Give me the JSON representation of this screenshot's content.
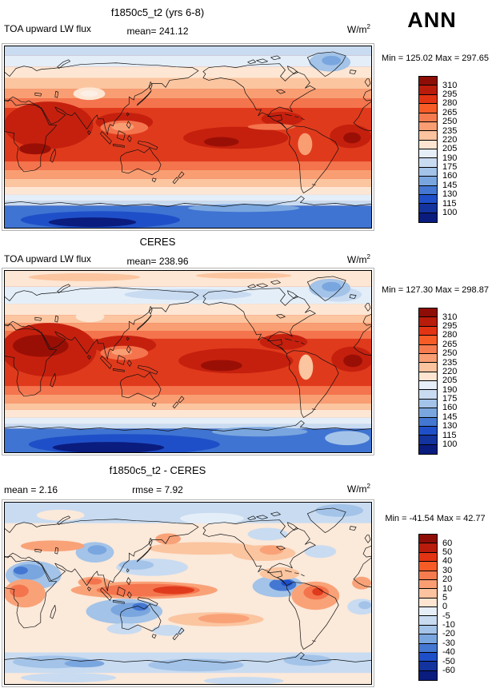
{
  "figure": {
    "season": "ANN"
  },
  "panels": [
    {
      "title": "f1850c5_t2 (yrs 6-8)",
      "variable": "TOA upward LW flux",
      "mean_label": "mean= 241.12",
      "units_base": "W/m",
      "units_exp": "2",
      "minmax": "Min = 125.02 Max = 297.65"
    },
    {
      "title": "CERES",
      "variable": "TOA upward LW flux",
      "mean_label": "mean= 238.96",
      "units_base": "W/m",
      "units_exp": "2",
      "minmax": "Min = 127.30 Max = 298.87"
    },
    {
      "title": "f1850c5_t2 - CERES",
      "mean_label": "mean =  2.16",
      "rmse_label": "rmse =  7.92",
      "units_base": "W/m",
      "units_exp": "2",
      "minmax": "Min = -41.54 Max =  42.77"
    }
  ],
  "palette_top_to_bottom": [
    "#8E0D06",
    "#B91C0B",
    "#E23413",
    "#F75C27",
    "#F67C50",
    "#F99E73",
    "#FBC39E",
    "#FDE5D1",
    "#E6EEF8",
    "#C8DBF1",
    "#A3C3E8",
    "#7AA6DF",
    "#4377D2",
    "#1F4FC8",
    "#13339E",
    "#0A1C7E"
  ],
  "colorbar_ticks": {
    "flux": [
      "310",
      "295",
      "280",
      "265",
      "250",
      "235",
      "220",
      "205",
      "190",
      "175",
      "160",
      "145",
      "130",
      "115",
      "100"
    ],
    "diff": [
      "60",
      "50",
      "40",
      "30",
      "20",
      "10",
      "5",
      "0",
      "-5",
      "-10",
      "-20",
      "-30",
      "-40",
      "-50",
      "-60"
    ]
  },
  "chart_data": [
    {
      "type": "heatmap",
      "subtype": "global_filled_contour_map",
      "map_region": "global, Pacific-centered",
      "season": "ANN",
      "title": "f1850c5_t2 (yrs 6-8)",
      "variable": "TOA upward LW flux",
      "units": "W/m2",
      "mean": 241.12,
      "min": 125.02,
      "max": 297.65,
      "contour_levels": [
        100,
        115,
        130,
        145,
        160,
        175,
        190,
        205,
        220,
        235,
        250,
        265,
        280,
        295,
        310
      ],
      "palette_low_to_high": [
        "#0A1C7E",
        "#13339E",
        "#1F4FC8",
        "#4377D2",
        "#7AA6DF",
        "#A3C3E8",
        "#C8DBF1",
        "#E6EEF8",
        "#FDE5D1",
        "#FBC39E",
        "#F99E73",
        "#F67C50",
        "#F75C27",
        "#E23413",
        "#B91C0B",
        "#8E0D06"
      ],
      "legend_position": "right",
      "pattern": "high values (red, 250-300) across tropics/subtropics, maxima over Sahara/Arabia, subtropical Pacific and Atlantic; low values (blue, 100-175) over Antarctica and Arctic"
    },
    {
      "type": "heatmap",
      "subtype": "global_filled_contour_map",
      "map_region": "global, Pacific-centered",
      "season": "ANN",
      "title": "CERES",
      "variable": "TOA upward LW flux",
      "units": "W/m2",
      "mean": 238.96,
      "min": 127.3,
      "max": 298.87,
      "contour_levels": [
        100,
        115,
        130,
        145,
        160,
        175,
        190,
        205,
        220,
        235,
        250,
        265,
        280,
        295,
        310
      ],
      "legend_position": "right",
      "pattern": "same field from CERES observations; similar tropical maxima, slightly warmer Arctic (peach) band"
    },
    {
      "type": "heatmap",
      "subtype": "global_filled_contour_difference_map",
      "map_region": "global, Pacific-centered",
      "season": "ANN",
      "title": "f1850c5_t2 - CERES",
      "variable": "TOA upward LW flux difference",
      "units": "W/m2",
      "mean": 2.16,
      "rmse": 7.92,
      "min": -41.54,
      "max": 42.77,
      "contour_levels": [
        -60,
        -50,
        -40,
        -30,
        -20,
        -10,
        -5,
        0,
        5,
        10,
        20,
        30,
        40,
        50,
        60
      ],
      "legend_position": "right",
      "pattern": "positive (red) band along equatorial west/central Pacific and Amazon; negative (blue) over Arabian Sea, Tibet, Coral Sea, east Pacific off Peru and southern ocean"
    }
  ]
}
